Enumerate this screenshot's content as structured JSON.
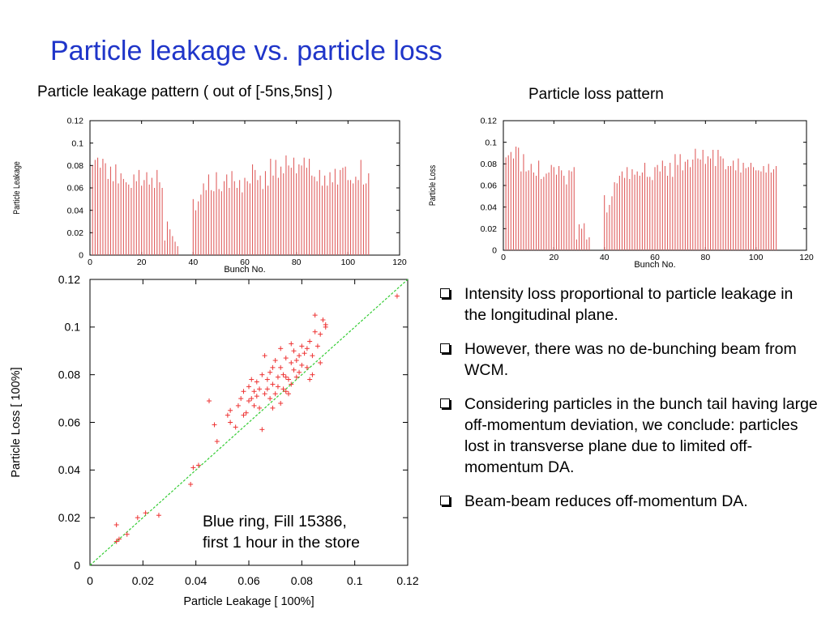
{
  "slide": {
    "title": "Particle leakage vs. particle loss",
    "left_subtitle": "Particle leakage pattern ( out of [-5ns,5ns]  )",
    "right_subtitle": "Particle loss pattern",
    "annotation_line1": "Blue ring, Fill 15386,",
    "annotation_line2": "first 1 hour in the store"
  },
  "bullets": [
    "Intensity loss proportional to particle leakage in the longitudinal plane.",
    "However, there was no de-bunching beam from WCM.",
    "Considering  particles in the bunch tail having large off-momentum deviation, we conclude:  particles lost in transverse plane due to limited off-momentum DA.",
    "Beam-beam reduces off-momentum DA."
  ],
  "colors": {
    "title": "#1f35c9",
    "bars": "#e06060",
    "points": "#ee3333",
    "fit_line": "#33cc33"
  },
  "chart_data": [
    {
      "id": "leakage-pattern",
      "type": "bar",
      "title": "",
      "xlabel": "Bunch No.",
      "ylabel": "Particle Leakage",
      "xlim": [
        0,
        120
      ],
      "ylim": [
        0,
        0.12
      ],
      "xticks": [
        "0",
        "20",
        "40",
        "60",
        "80",
        "100",
        "120"
      ],
      "yticks": [
        "0",
        "0.02",
        "0.04",
        "0.06",
        "0.08",
        "0.1",
        "0.12"
      ],
      "x": [
        1,
        2,
        3,
        4,
        5,
        6,
        7,
        8,
        9,
        10,
        11,
        12,
        13,
        14,
        15,
        16,
        17,
        18,
        19,
        20,
        21,
        22,
        23,
        24,
        25,
        26,
        27,
        28,
        29,
        30,
        31,
        32,
        33,
        34,
        35,
        36,
        37,
        38,
        39,
        40,
        41,
        42,
        43,
        44,
        45,
        46,
        47,
        48,
        49,
        50,
        51,
        52,
        53,
        54,
        55,
        56,
        57,
        58,
        59,
        60,
        61,
        62,
        63,
        64,
        65,
        66,
        67,
        68,
        69,
        70,
        71,
        72,
        73,
        74,
        75,
        76,
        77,
        78,
        79,
        80,
        81,
        82,
        83,
        84,
        85,
        86,
        87,
        88,
        89,
        90,
        91,
        92,
        93,
        94,
        95,
        96,
        97,
        98,
        99,
        100,
        101,
        102,
        103,
        104,
        105,
        106,
        107,
        108,
        109
      ],
      "values": [
        0.08,
        0.085,
        0.087,
        0.078,
        0.086,
        0.082,
        0.068,
        0.079,
        0.066,
        0.081,
        0.064,
        0.073,
        0.068,
        0.065,
        0.063,
        0.06,
        0.072,
        0.066,
        0.076,
        0.062,
        0.067,
        0.074,
        0.063,
        0.069,
        0.06,
        0.076,
        0.065,
        0.06,
        0.013,
        0.03,
        0.023,
        0.017,
        0.012,
        0.008,
        0.0,
        0.0,
        0.0,
        0.0,
        0.0,
        0.05,
        0.04,
        0.048,
        0.054,
        0.064,
        0.058,
        0.072,
        0.058,
        0.057,
        0.074,
        0.059,
        0.057,
        0.066,
        0.072,
        0.06,
        0.075,
        0.066,
        0.06,
        0.067,
        0.056,
        0.069,
        0.066,
        0.064,
        0.081,
        0.076,
        0.067,
        0.071,
        0.059,
        0.075,
        0.062,
        0.086,
        0.071,
        0.085,
        0.069,
        0.079,
        0.073,
        0.089,
        0.08,
        0.078,
        0.087,
        0.073,
        0.081,
        0.08,
        0.087,
        0.078,
        0.086,
        0.071,
        0.07,
        0.066,
        0.076,
        0.062,
        0.071,
        0.062,
        0.074,
        0.065,
        0.077,
        0.063,
        0.076,
        0.078,
        0.079,
        0.067,
        0.067,
        0.064,
        0.07,
        0.067,
        0.085,
        0.063,
        0.064,
        0.073,
        0.0
      ]
    },
    {
      "id": "loss-pattern",
      "type": "bar",
      "title": "",
      "xlabel": "Bunch No.",
      "ylabel": "Particle Loss",
      "xlim": [
        0,
        120
      ],
      "ylim": [
        0,
        0.12
      ],
      "xticks": [
        "0",
        "20",
        "40",
        "60",
        "80",
        "100",
        "120"
      ],
      "yticks": [
        "0",
        "0.02",
        "0.04",
        "0.06",
        "0.08",
        "0.1",
        "0.12"
      ],
      "x": [
        1,
        2,
        3,
        4,
        5,
        6,
        7,
        8,
        9,
        10,
        11,
        12,
        13,
        14,
        15,
        16,
        17,
        18,
        19,
        20,
        21,
        22,
        23,
        24,
        25,
        26,
        27,
        28,
        29,
        30,
        31,
        32,
        33,
        34,
        35,
        36,
        37,
        38,
        39,
        40,
        41,
        42,
        43,
        44,
        45,
        46,
        47,
        48,
        49,
        50,
        51,
        52,
        53,
        54,
        55,
        56,
        57,
        58,
        59,
        60,
        61,
        62,
        63,
        64,
        65,
        66,
        67,
        68,
        69,
        70,
        71,
        72,
        73,
        74,
        75,
        76,
        77,
        78,
        79,
        80,
        81,
        82,
        83,
        84,
        85,
        86,
        87,
        88,
        89,
        90,
        91,
        92,
        93,
        94,
        95,
        96,
        97,
        98,
        99,
        100,
        101,
        102,
        103,
        104,
        105,
        106,
        107,
        108,
        109
      ],
      "values": [
        0.086,
        0.088,
        0.091,
        0.085,
        0.096,
        0.095,
        0.073,
        0.089,
        0.073,
        0.074,
        0.08,
        0.072,
        0.069,
        0.083,
        0.066,
        0.068,
        0.071,
        0.072,
        0.079,
        0.077,
        0.07,
        0.078,
        0.074,
        0.069,
        0.061,
        0.074,
        0.073,
        0.077,
        0.01,
        0.024,
        0.02,
        0.025,
        0.01,
        0.012,
        0.0,
        0.0,
        0.0,
        0.0,
        0.0,
        0.051,
        0.035,
        0.042,
        0.05,
        0.063,
        0.062,
        0.069,
        0.073,
        0.067,
        0.077,
        0.066,
        0.075,
        0.07,
        0.073,
        0.069,
        0.072,
        0.081,
        0.068,
        0.068,
        0.065,
        0.077,
        0.079,
        0.073,
        0.083,
        0.078,
        0.069,
        0.081,
        0.068,
        0.089,
        0.079,
        0.089,
        0.074,
        0.082,
        0.084,
        0.077,
        0.084,
        0.094,
        0.085,
        0.084,
        0.093,
        0.08,
        0.087,
        0.085,
        0.093,
        0.078,
        0.093,
        0.087,
        0.085,
        0.075,
        0.078,
        0.078,
        0.083,
        0.074,
        0.085,
        0.072,
        0.081,
        0.076,
        0.077,
        0.081,
        0.077,
        0.074,
        0.074,
        0.073,
        0.078,
        0.072,
        0.08,
        0.072,
        0.075,
        0.078,
        0.0
      ]
    },
    {
      "id": "leakage-vs-loss",
      "type": "scatter",
      "title": "",
      "xlabel": "Particle Leakage [ 100%]",
      "ylabel": "Particle Loss [ 100%]",
      "xlim": [
        0,
        0.12
      ],
      "ylim": [
        0,
        0.12
      ],
      "xticks": [
        "0",
        "0.02",
        "0.04",
        "0.06",
        "0.08",
        "0.1",
        "0.12"
      ],
      "yticks": [
        "0",
        "0.02",
        "0.04",
        "0.06",
        "0.08",
        "0.1",
        "0.12"
      ],
      "fit_line": {
        "x": [
          0,
          0.12
        ],
        "y": [
          0,
          0.12
        ]
      },
      "points": [
        [
          0.01,
          0.017
        ],
        [
          0.01,
          0.01
        ],
        [
          0.011,
          0.011
        ],
        [
          0.014,
          0.013
        ],
        [
          0.018,
          0.02
        ],
        [
          0.021,
          0.022
        ],
        [
          0.026,
          0.021
        ],
        [
          0.038,
          0.034
        ],
        [
          0.039,
          0.041
        ],
        [
          0.041,
          0.042
        ],
        [
          0.045,
          0.069
        ],
        [
          0.047,
          0.059
        ],
        [
          0.048,
          0.052
        ],
        [
          0.052,
          0.063
        ],
        [
          0.053,
          0.06
        ],
        [
          0.053,
          0.065
        ],
        [
          0.055,
          0.058
        ],
        [
          0.056,
          0.067
        ],
        [
          0.057,
          0.07
        ],
        [
          0.058,
          0.063
        ],
        [
          0.059,
          0.064
        ],
        [
          0.058,
          0.073
        ],
        [
          0.06,
          0.069
        ],
        [
          0.06,
          0.075
        ],
        [
          0.061,
          0.07
        ],
        [
          0.061,
          0.078
        ],
        [
          0.062,
          0.067
        ],
        [
          0.062,
          0.073
        ],
        [
          0.063,
          0.071
        ],
        [
          0.063,
          0.077
        ],
        [
          0.064,
          0.074
        ],
        [
          0.064,
          0.066
        ],
        [
          0.065,
          0.057
        ],
        [
          0.065,
          0.08
        ],
        [
          0.066,
          0.072
        ],
        [
          0.066,
          0.088
        ],
        [
          0.067,
          0.074
        ],
        [
          0.067,
          0.078
        ],
        [
          0.068,
          0.07
        ],
        [
          0.068,
          0.081
        ],
        [
          0.069,
          0.076
        ],
        [
          0.069,
          0.066
        ],
        [
          0.07,
          0.072
        ],
        [
          0.07,
          0.086
        ],
        [
          0.071,
          0.075
        ],
        [
          0.071,
          0.079
        ],
        [
          0.072,
          0.083
        ],
        [
          0.072,
          0.068
        ],
        [
          0.073,
          0.074
        ],
        [
          0.073,
          0.08
        ],
        [
          0.074,
          0.073
        ],
        [
          0.074,
          0.087
        ],
        [
          0.075,
          0.078
        ],
        [
          0.075,
          0.072
        ],
        [
          0.076,
          0.085
        ],
        [
          0.076,
          0.076
        ],
        [
          0.077,
          0.082
        ],
        [
          0.077,
          0.09
        ],
        [
          0.078,
          0.079
        ],
        [
          0.078,
          0.086
        ],
        [
          0.079,
          0.088
        ],
        [
          0.079,
          0.081
        ],
        [
          0.08,
          0.092
        ],
        [
          0.08,
          0.084
        ],
        [
          0.081,
          0.089
        ],
        [
          0.082,
          0.091
        ],
        [
          0.082,
          0.083
        ],
        [
          0.083,
          0.094
        ],
        [
          0.084,
          0.088
        ],
        [
          0.085,
          0.098
        ],
        [
          0.085,
          0.105
        ],
        [
          0.086,
          0.092
        ],
        [
          0.087,
          0.085
        ],
        [
          0.087,
          0.097
        ],
        [
          0.088,
          0.103
        ],
        [
          0.089,
          0.101
        ],
        [
          0.089,
          0.1
        ],
        [
          0.084,
          0.08
        ],
        [
          0.083,
          0.078
        ],
        [
          0.074,
          0.079
        ],
        [
          0.069,
          0.083
        ],
        [
          0.072,
          0.091
        ],
        [
          0.076,
          0.093
        ],
        [
          0.116,
          0.113
        ]
      ]
    }
  ]
}
